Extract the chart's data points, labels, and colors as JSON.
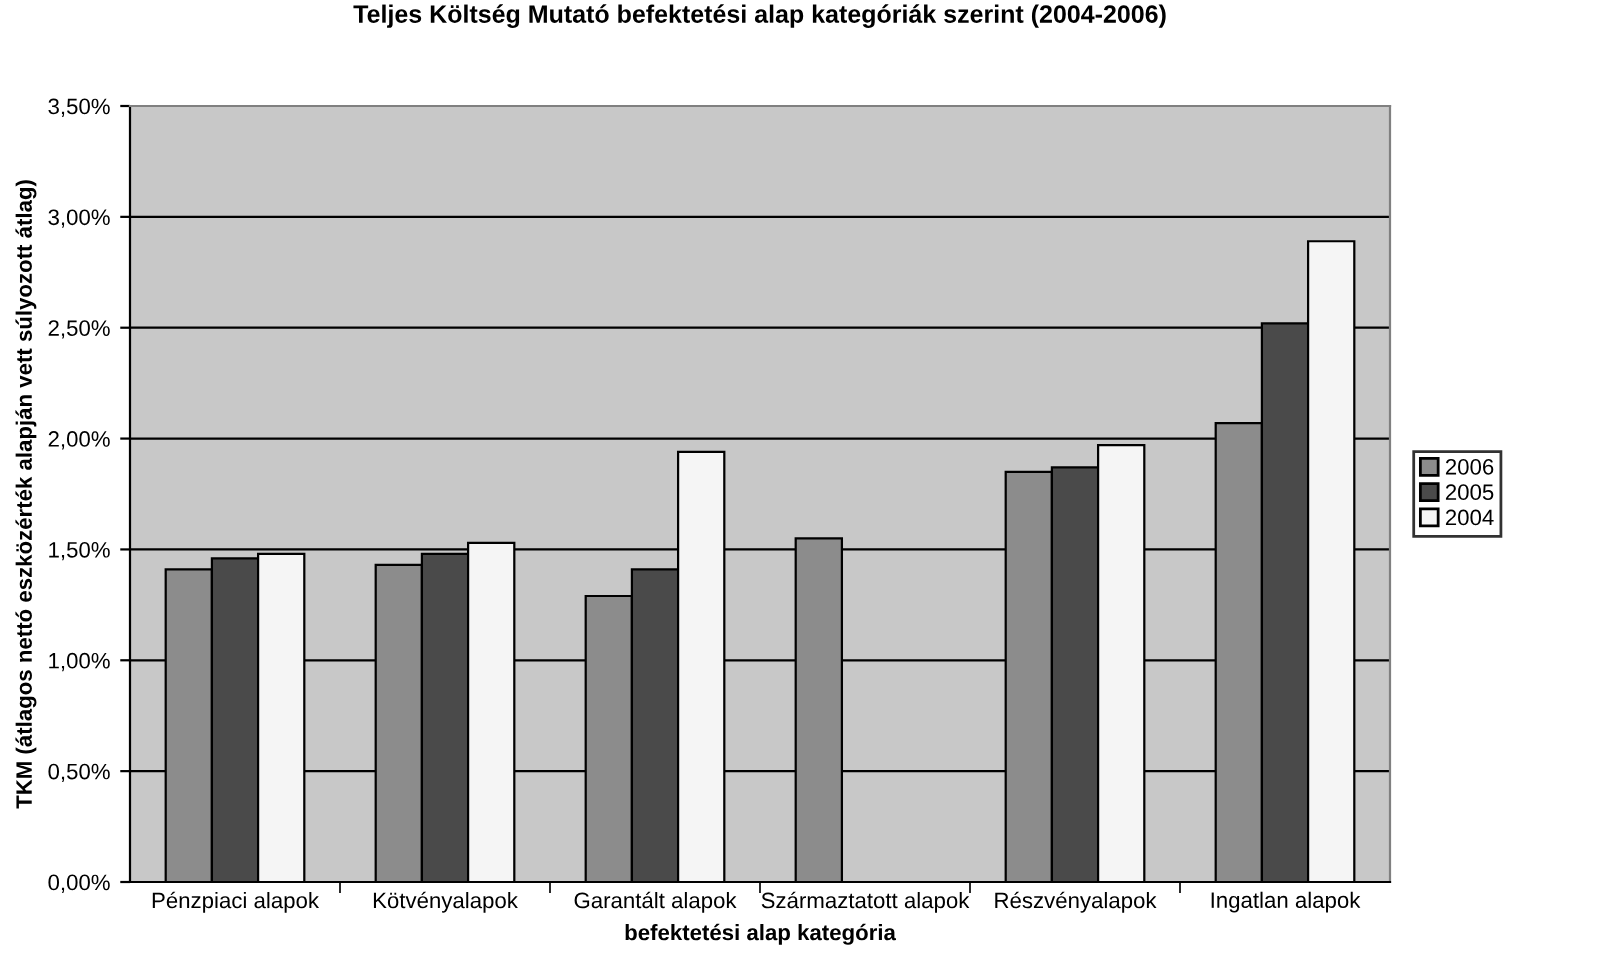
{
  "chart_data": {
    "type": "bar",
    "title": "Teljes Költség Mutató befektetési alap kategóriák szerint (2004-2006)",
    "xlabel": "befektetési alap kategória",
    "ylabel": "TKM (átlagos nettó eszközérték alapján vett súlyozott átlag)",
    "categories": [
      "Pénzpiaci alapok",
      "Kötvényalapok",
      "Garantált alapok",
      "Származtatott alapok",
      "Részvényalapok",
      "Ingatlan alapok"
    ],
    "series": [
      {
        "name": "2006",
        "color": "#8c8c8c",
        "values": [
          1.41,
          1.43,
          1.29,
          1.55,
          1.85,
          2.07
        ]
      },
      {
        "name": "2005",
        "color": "#4a4a4a",
        "values": [
          1.46,
          1.48,
          1.41,
          null,
          1.87,
          2.52
        ]
      },
      {
        "name": "2004",
        "color": "#f5f5f5",
        "values": [
          1.48,
          1.53,
          1.94,
          null,
          1.97,
          2.89
        ]
      }
    ],
    "ylim": [
      0,
      3.5
    ],
    "yticks": [
      {
        "value": 0,
        "label": "0,00%"
      },
      {
        "value": 0.5,
        "label": "0,50%"
      },
      {
        "value": 1,
        "label": "1,00%"
      },
      {
        "value": 1.5,
        "label": "1,50%"
      },
      {
        "value": 2,
        "label": "2,00%"
      },
      {
        "value": 2.5,
        "label": "2,50%"
      },
      {
        "value": 3,
        "label": "3,00%"
      },
      {
        "value": 3.5,
        "label": "3,50%"
      }
    ],
    "grid": "y",
    "legend": "right"
  }
}
